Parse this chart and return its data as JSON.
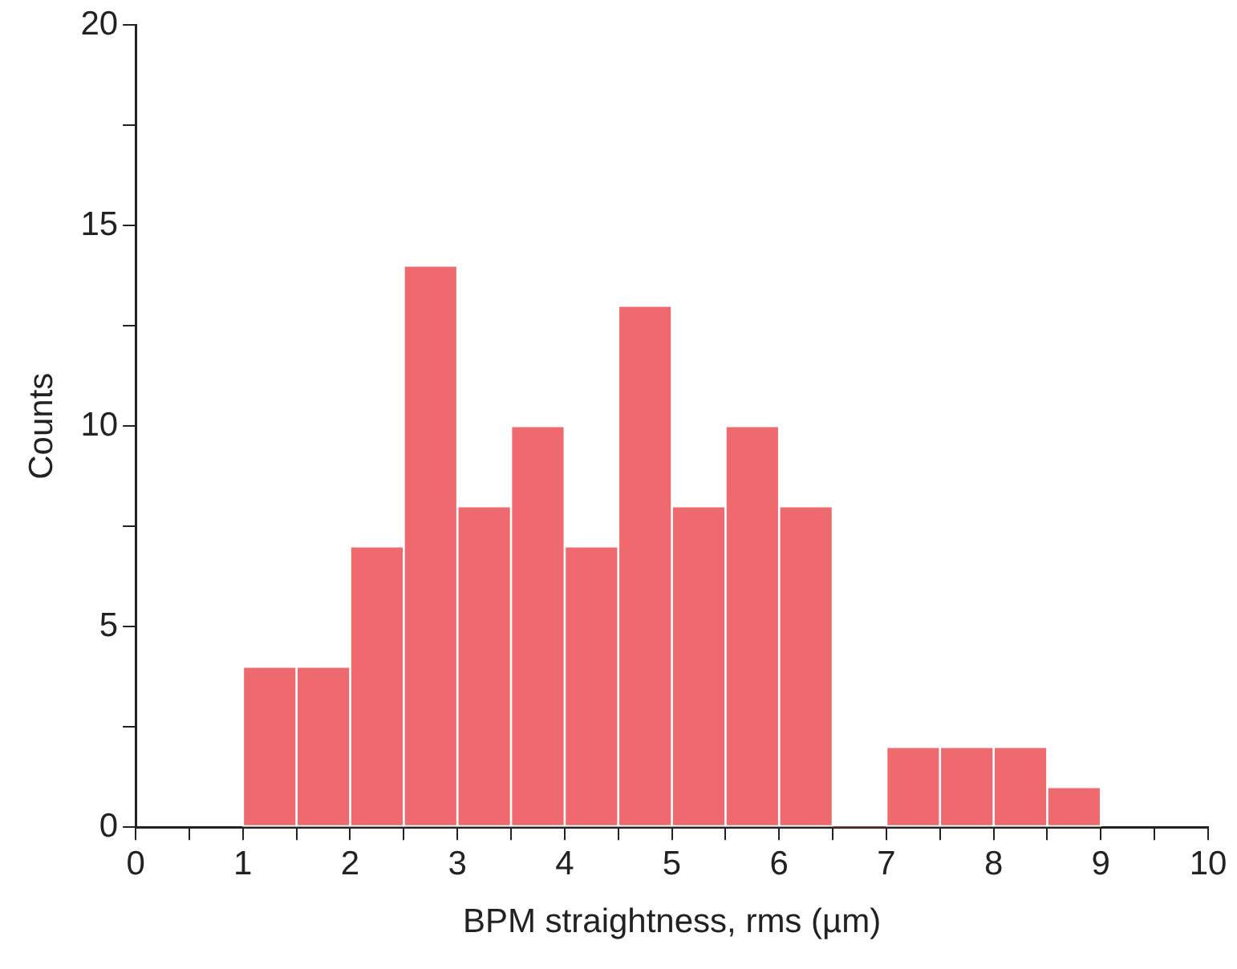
{
  "chart_data": {
    "type": "histogram",
    "xlabel": "BPM straightness, rms (µm)",
    "ylabel": "Counts",
    "color": "#ee6a6f",
    "bins": [
      1,
      1.5,
      2,
      2.5,
      3,
      3.5,
      4,
      4.5,
      5,
      5.5,
      6,
      6.5,
      7,
      7.5,
      8,
      8.5,
      9
    ],
    "values": [
      4,
      4,
      7,
      14,
      8,
      10,
      7,
      13,
      8,
      10,
      8,
      0,
      2,
      2,
      2,
      1
    ],
    "xlim": [
      0,
      10
    ],
    "xticks": [
      0,
      {
        "value": 0.5,
        "label": null
      },
      1,
      {
        "value": 1.5,
        "label": null
      },
      2,
      {
        "value": 2.5,
        "label": null
      },
      3,
      {
        "value": 3.5,
        "label": null
      },
      4,
      {
        "value": 4.5,
        "label": null
      },
      5,
      {
        "value": 5.5,
        "label": null
      },
      6,
      {
        "value": 6.5,
        "label": null
      },
      7,
      {
        "value": 7.5,
        "label": null
      },
      8,
      {
        "value": 8.5,
        "label": null
      },
      9,
      {
        "value": 9.5,
        "label": null
      },
      10
    ],
    "ylim": [
      0,
      20
    ],
    "yticks": [
      0,
      {
        "value": 2.5,
        "label": null
      },
      5,
      {
        "value": 7.5,
        "label": null
      },
      10,
      {
        "value": 12.5,
        "label": null
      },
      15,
      {
        "value": 17.5,
        "label": null
      },
      20
    ],
    "grid": false,
    "legend": false
  }
}
